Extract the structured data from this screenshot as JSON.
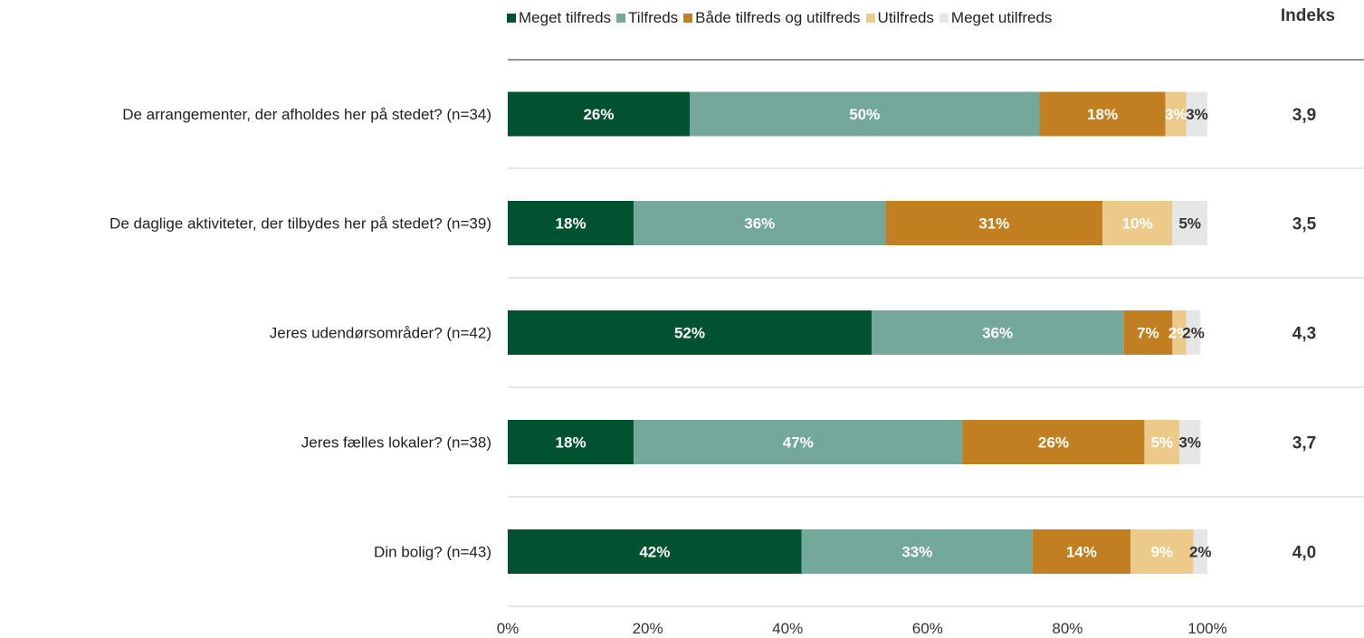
{
  "chart_data": {
    "type": "bar",
    "orientation": "horizontal",
    "stacked": true,
    "categories": [
      "De arrangementer, der afholdes her på stedet? (n=34)",
      "De daglige aktiviteter, der tilbydes her på stedet? (n=39)",
      "Jeres udendørsområder? (n=42)",
      "Jeres fælles lokaler? (n=38)",
      "Din bolig? (n=43)"
    ],
    "series": [
      {
        "name": "Meget tilfreds",
        "color": "#005230",
        "label_color": "#ffffff",
        "values": [
          26,
          18,
          52,
          18,
          42
        ]
      },
      {
        "name": "Tilfreds",
        "color": "#74a89a",
        "label_color": "#ffffff",
        "values": [
          50,
          36,
          36,
          47,
          33
        ]
      },
      {
        "name": "Både tilfreds og utilfreds",
        "color": "#c27f22",
        "label_color": "#ffffff",
        "values": [
          18,
          31,
          7,
          26,
          14
        ]
      },
      {
        "name": "Utilfreds",
        "color": "#eccb8a",
        "label_color": "#ffffff",
        "values": [
          3,
          10,
          2,
          5,
          9
        ]
      },
      {
        "name": "Meget utilfreds",
        "color": "#e6e6e6",
        "label_color": "#333333",
        "values": [
          3,
          5,
          2,
          3,
          2
        ]
      }
    ],
    "xlim": [
      0,
      100
    ],
    "xticks": [
      "0%",
      "20%",
      "40%",
      "60%",
      "80%",
      "100%"
    ],
    "index_header": "Indeks",
    "index_values": [
      "3,9",
      "3,5",
      "4,3",
      "3,7",
      "4,0"
    ],
    "legend_position": "top"
  }
}
